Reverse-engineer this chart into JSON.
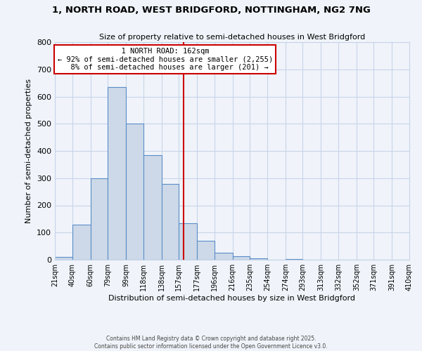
{
  "title1": "1, NORTH ROAD, WEST BRIDGFORD, NOTTINGHAM, NG2 7NG",
  "title2": "Size of property relative to semi-detached houses in West Bridgford",
  "xlabel": "Distribution of semi-detached houses by size in West Bridgford",
  "ylabel": "Number of semi-detached properties",
  "bin_labels": [
    "21sqm",
    "40sqm",
    "60sqm",
    "79sqm",
    "99sqm",
    "118sqm",
    "138sqm",
    "157sqm",
    "177sqm",
    "196sqm",
    "216sqm",
    "235sqm",
    "254sqm",
    "274sqm",
    "293sqm",
    "313sqm",
    "332sqm",
    "352sqm",
    "371sqm",
    "391sqm",
    "410sqm"
  ],
  "bin_counts": [
    10,
    130,
    300,
    635,
    500,
    385,
    278,
    133,
    70,
    27,
    12,
    5,
    0,
    3,
    0,
    0,
    0,
    0,
    0,
    0
  ],
  "bin_edges": [
    21,
    40,
    60,
    79,
    99,
    118,
    138,
    157,
    177,
    196,
    216,
    235,
    254,
    274,
    293,
    313,
    332,
    352,
    371,
    391,
    410
  ],
  "property_value": 162,
  "property_label": "1 NORTH ROAD: 162sqm",
  "pct_smaller": 92,
  "n_smaller": 2255,
  "pct_larger": 8,
  "n_larger": 201,
  "bar_facecolor": "#cdd9e8",
  "bar_edgecolor": "#5b8dc8",
  "vline_color": "#cc0000",
  "annotation_box_edgecolor": "#cc0000",
  "grid_color": "#c8d4e8",
  "background_color": "#f0f4fa",
  "ylim": [
    0,
    800
  ],
  "yticks": [
    0,
    100,
    200,
    300,
    400,
    500,
    600,
    700,
    800
  ],
  "footer1": "Contains HM Land Registry data © Crown copyright and database right 2025.",
  "footer2": "Contains public sector information licensed under the Open Government Licence v3.0."
}
